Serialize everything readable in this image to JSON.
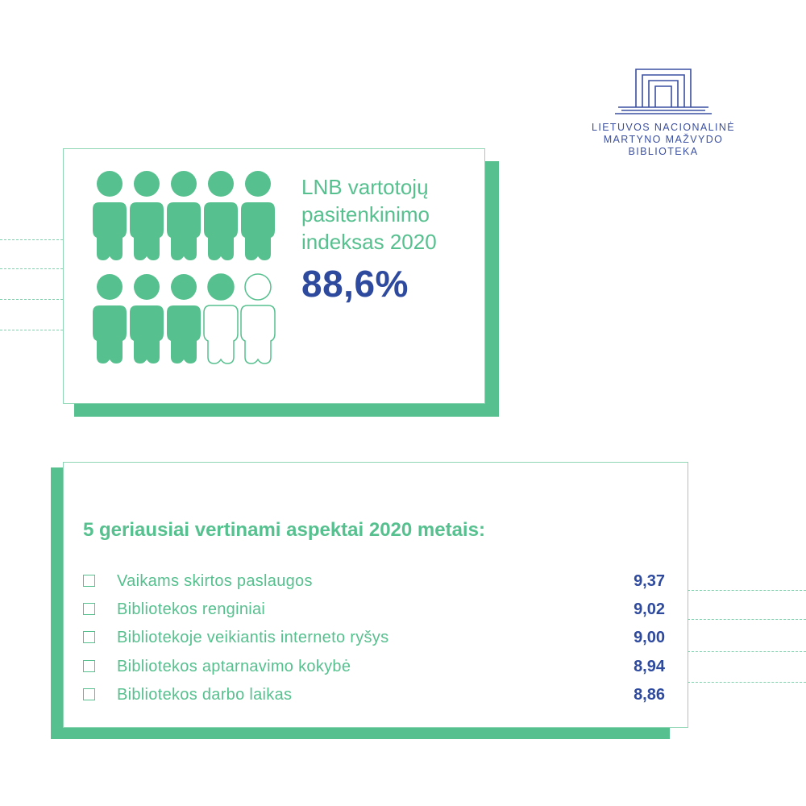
{
  "logo": {
    "icon": "library-building-icon",
    "lines": [
      "LIETUVOS NACIONALINĖ",
      "MARTYNO MAŽVYDO",
      "BIBLIOTEKA"
    ]
  },
  "colors": {
    "green": "#57c08f",
    "blue": "#2e4a9e",
    "border": "#8fd6b5"
  },
  "index": {
    "title_lines": [
      "LNB vartotojų",
      "pasitenkinimo",
      "indeksas 2020"
    ],
    "value": "88,6%",
    "people_icon": "person-icon",
    "people_total": 10,
    "people_filled_fraction": 0.886
  },
  "aspects": {
    "title": "5 geriausiai vertinami aspektai 2020 metais:",
    "items": [
      {
        "label": "Vaikams skirtos paslaugos",
        "score": "9,37"
      },
      {
        "label": "Bibliotekos renginiai",
        "score": "9,02"
      },
      {
        "label": "Bibliotekoje veikiantis interneto ryšys",
        "score": "9,00"
      },
      {
        "label": "Bibliotekos aptarnavimo kokybė",
        "score": "8,94"
      },
      {
        "label": "Bibliotekos darbo laikas",
        "score": "8,86"
      }
    ]
  }
}
